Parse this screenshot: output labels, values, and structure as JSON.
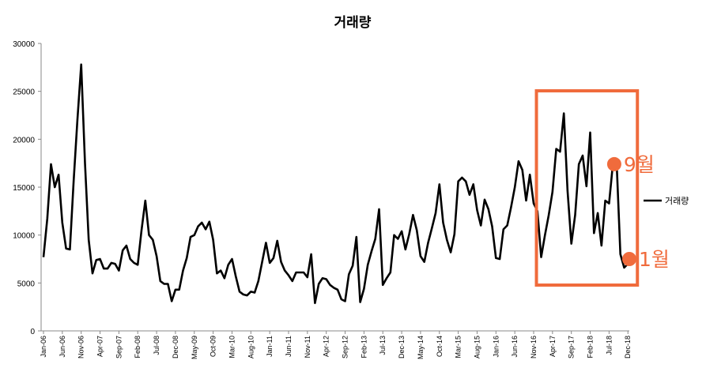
{
  "chart_data": {
    "type": "line",
    "title": "거래량",
    "ylim": [
      0,
      30000
    ],
    "y_ticks": [
      "0",
      "5000",
      "10000",
      "15000",
      "20000",
      "25000",
      "30000"
    ],
    "x_tick_labels": [
      "Jan-06",
      "Jun-06",
      "Nov-06",
      "Apr-07",
      "Sep-07",
      "Feb-08",
      "Jul-08",
      "Dec-08",
      "May-09",
      "Oct-09",
      "Mar-10",
      "Aug-10",
      "Jan-11",
      "Jun-11",
      "Nov-11",
      "Apr-12",
      "Sep-12",
      "Feb-13",
      "Jul-13",
      "Dec-13",
      "May-14",
      "Oct-14",
      "Mar-15",
      "Aug-15",
      "Jan-16",
      "Jun-16",
      "Nov-16",
      "Apr-17",
      "Sep-17",
      "Feb-18",
      "Jul-18",
      "Dec-18"
    ],
    "legend": {
      "position": "right"
    },
    "grid": false,
    "series": [
      {
        "name": "거래량",
        "color": "#000000",
        "x_start": "2006-01",
        "values": [
          7700,
          11700,
          17400,
          15000,
          16300,
          11300,
          8600,
          8500,
          15700,
          22000,
          27800,
          17500,
          9500,
          6000,
          7400,
          7500,
          6500,
          6500,
          7100,
          7000,
          6300,
          8400,
          8900,
          7500,
          7100,
          6900,
          10500,
          13600,
          10000,
          9500,
          7800,
          5200,
          4900,
          4900,
          3100,
          4300,
          4300,
          6300,
          7600,
          9800,
          10000,
          10900,
          11300,
          10600,
          11400,
          9500,
          6000,
          6300,
          5500,
          6900,
          7500,
          5700,
          4100,
          3800,
          3700,
          4100,
          4000,
          5200,
          7200,
          9200,
          7100,
          7600,
          9400,
          7200,
          6300,
          5800,
          5200,
          6100,
          6100,
          6100,
          5600,
          8000,
          2900,
          4900,
          5500,
          5400,
          4800,
          4500,
          4300,
          3300,
          3100,
          5900,
          6800,
          9800,
          3000,
          4400,
          6900,
          8300,
          9600,
          12700,
          4800,
          5500,
          6100,
          10000,
          9600,
          10400,
          8500,
          10100,
          12100,
          10500,
          7800,
          7200,
          9200,
          10700,
          12300,
          15300,
          11300,
          9500,
          8200,
          10100,
          15600,
          16000,
          15600,
          14200,
          15300,
          12600,
          11000,
          13700,
          12700,
          10900,
          7600,
          7500,
          10600,
          11000,
          12900,
          15000,
          17700,
          16800,
          13600,
          16300,
          13300,
          12500,
          7700,
          10000,
          12100,
          14500,
          19000,
          18700,
          22700,
          14600,
          9100,
          12100,
          17400,
          18300,
          15100,
          20700,
          10200,
          12300,
          8900,
          13600,
          13300,
          17400,
          17700,
          8000,
          6600,
          7000
        ]
      }
    ],
    "highlight_box": {
      "x_range": [
        "2017-01",
        "2018-12"
      ]
    },
    "annotations": [
      {
        "text": "9월",
        "x": "2018-09",
        "y": 17400,
        "color": "#f06b3c"
      },
      {
        "text": "1월",
        "x": "2019-01",
        "y": 7500,
        "color": "#f06b3c"
      }
    ],
    "accent_color": "#f06b3c"
  }
}
